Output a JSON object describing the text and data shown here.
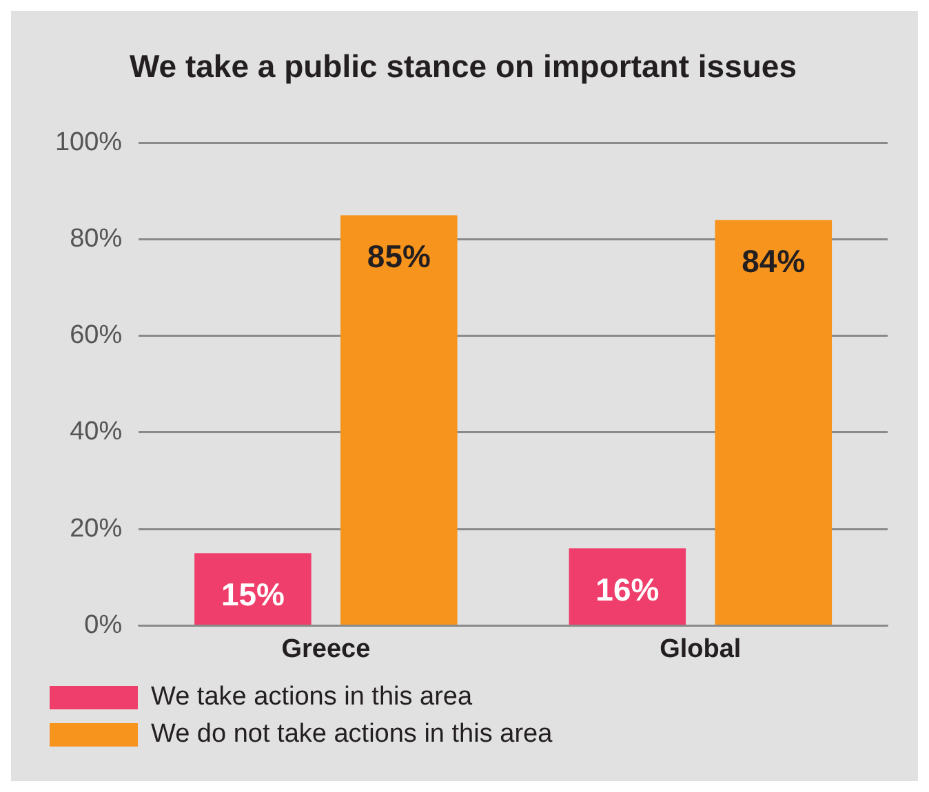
{
  "chart_data": {
    "type": "bar",
    "title": "We take a public stance on important issues",
    "categories": [
      "Greece",
      "Global"
    ],
    "series": [
      {
        "name": "We take actions in this area",
        "color": "#ef3e6b",
        "values": [
          15,
          16
        ],
        "value_labels": [
          "15%",
          "16%"
        ]
      },
      {
        "name": "We do not take actions in this area",
        "color": "#f7941d",
        "values": [
          85,
          84
        ],
        "value_labels": [
          "85%",
          "84%"
        ]
      }
    ],
    "ylim": [
      0,
      100
    ],
    "yticks": [
      {
        "value": 0,
        "label": "0%"
      },
      {
        "value": 20,
        "label": "20%"
      },
      {
        "value": 40,
        "label": "40%"
      },
      {
        "value": 60,
        "label": "60%"
      },
      {
        "value": 80,
        "label": "80%"
      },
      {
        "value": 100,
        "label": "100%"
      }
    ],
    "grid": "y",
    "legend": "bottom"
  }
}
